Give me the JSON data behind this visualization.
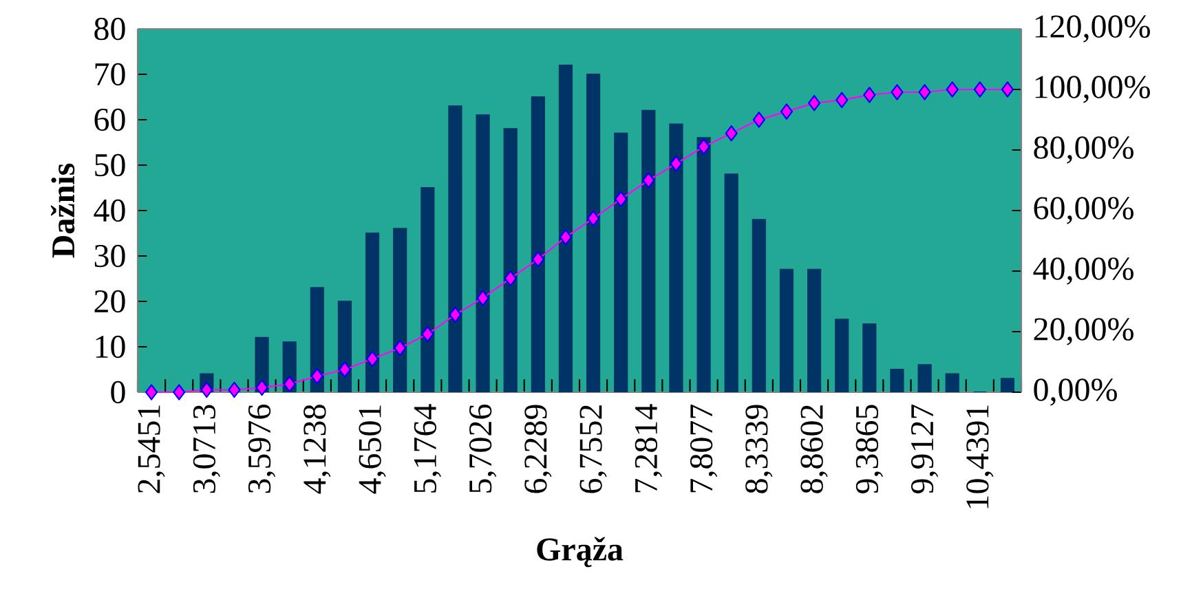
{
  "chart_data": {
    "type": "bar",
    "xlabel": "Grąža",
    "ylabel": "Dažnis",
    "categories": [
      "2,5451",
      null,
      "3,0713",
      null,
      "3,5976",
      null,
      "4,1238",
      null,
      "4,6501",
      null,
      "5,1764",
      null,
      "5,7026",
      null,
      "6,2289",
      null,
      "6,7552",
      null,
      "7,2814",
      null,
      "7,8077",
      null,
      "8,3339",
      null,
      "8,8602",
      null,
      "9,3865",
      null,
      "9,9127",
      null,
      "10,4391",
      null
    ],
    "series": [
      {
        "color": "#003366",
        "values": [
          0,
          0,
          4,
          0,
          12,
          11,
          23,
          20,
          35,
          36,
          45,
          63,
          61,
          58,
          65,
          72,
          70,
          57,
          62,
          59,
          56,
          48,
          38,
          27,
          27,
          16,
          15,
          5,
          6,
          4,
          0,
          3
        ]
      },
      {
        "type": "line",
        "axis": "y2",
        "color": "#ff00ff",
        "marker": "diamond",
        "line_style": "solid",
        "values": [
          0,
          0,
          0.8,
          0.8,
          1.5,
          2.7,
          5.3,
          7.5,
          11.0,
          14.6,
          19.2,
          25.6,
          31.1,
          37.6,
          43.9,
          51.2,
          57.4,
          63.8,
          70.0,
          75.5,
          81.1,
          85.5,
          90.0,
          92.7,
          95.5,
          96.5,
          98.2,
          99.1,
          99.1,
          100,
          100,
          100
        ]
      }
    ],
    "ylim": [
      0,
      80
    ],
    "yticks": [
      0,
      10,
      20,
      30,
      40,
      50,
      60,
      70,
      80
    ],
    "y2lim": [
      0,
      120
    ],
    "y2ticks": [
      {
        "value": 0,
        "label": "0,00%"
      },
      {
        "value": 20,
        "label": "20,00%"
      },
      {
        "value": 40,
        "label": "40,00%"
      },
      {
        "value": 60,
        "label": "60,00%"
      },
      {
        "value": 80,
        "label": "80,00%"
      },
      {
        "value": 100,
        "label": "100,00%"
      },
      {
        "value": 120,
        "label": "120,00%"
      }
    ]
  }
}
